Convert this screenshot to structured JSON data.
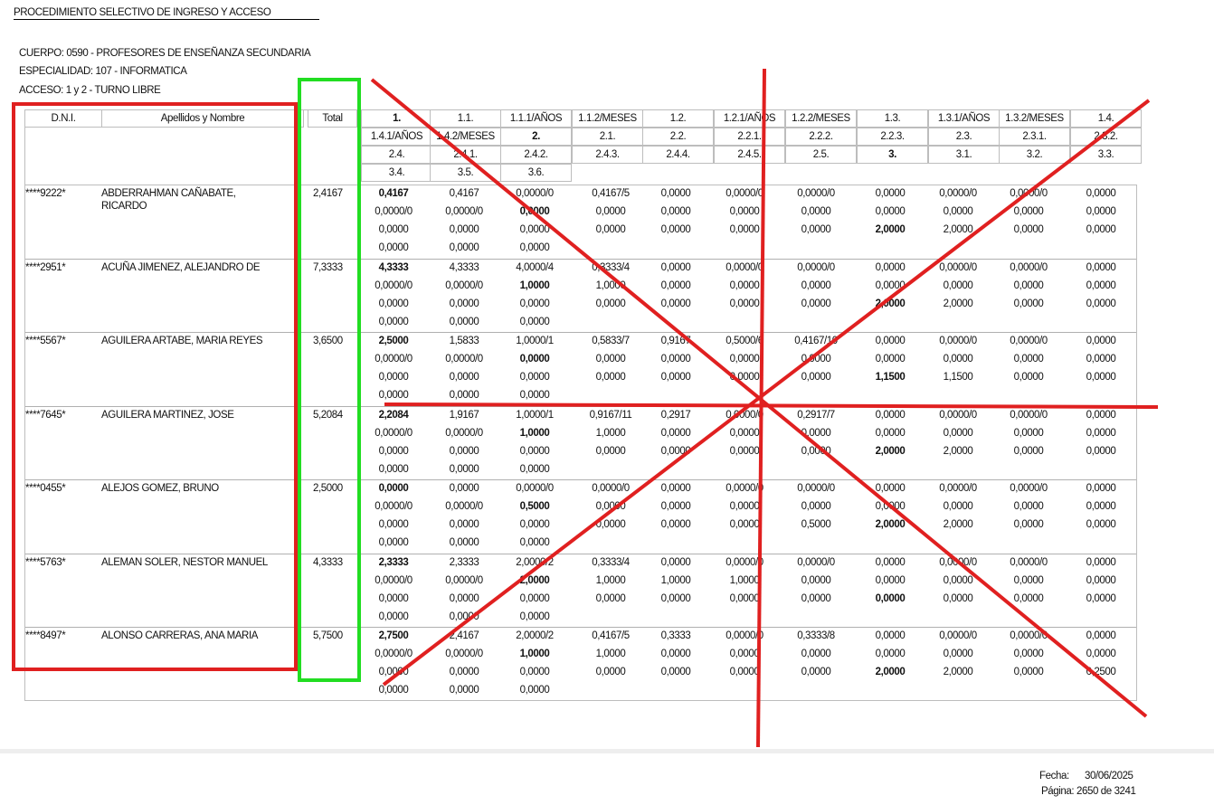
{
  "header": {
    "title": "PROCEDIMIENTO SELECTIVO DE INGRESO Y ACCESO",
    "cuerpo": "CUERPO: 0590 - PROFESORES DE ENSEÑANZA SECUNDARIA",
    "especialidad": "ESPECIALIDAD: 107 - INFORMATICA",
    "acceso": "ACCESO: 1 y 2 - TURNO LIBRE"
  },
  "table_header": {
    "dni": "D.N.I.",
    "nombre": "Apellidos y Nombre",
    "total": "Total",
    "score_rows": [
      [
        "1.",
        "1.1.",
        "1.1.1/AÑOS",
        "1.1.2/MESES",
        "1.2.",
        "1.2.1/AÑOS",
        "1.2.2/MESES",
        "1.3.",
        "1.3.1/AÑOS",
        "1.3.2/MESES",
        "1.4."
      ],
      [
        "1.4.1/AÑOS",
        "1.4.2/MESES",
        "2.",
        "2.1.",
        "2.2.",
        "2.2.1.",
        "2.2.2.",
        "2.2.3.",
        "2.3.",
        "2.3.1.",
        "2.3.2."
      ],
      [
        "2.4.",
        "2.4.1.",
        "2.4.2.",
        "2.4.3.",
        "2.4.4.",
        "2.4.5.",
        "2.5.",
        "3.",
        "3.1.",
        "3.2.",
        "3.3."
      ],
      [
        "3.4.",
        "3.5.",
        "3.6."
      ]
    ]
  },
  "candidates": [
    {
      "dni": "****9222*",
      "name_line1": "ABDERRAHMAN CAÑABATE,",
      "name_line2": "RICARDO",
      "total": "2,4167",
      "rows": [
        [
          "0,4167",
          "0,4167",
          "0,0000/0",
          "0,4167/5",
          "0,0000",
          "0,0000/0",
          "0,0000/0",
          "0,0000",
          "0,0000/0",
          "0,0000/0",
          "0,0000"
        ],
        [
          "0,0000/0",
          "0,0000/0",
          "0,0000",
          "0,0000",
          "0,0000",
          "0,0000",
          "0,0000",
          "0,0000",
          "0,0000",
          "0,0000",
          "0,0000"
        ],
        [
          "0,0000",
          "0,0000",
          "0,0000",
          "0,0000",
          "0,0000",
          "0,0000",
          "0,0000",
          "2,0000",
          "2,0000",
          "0,0000",
          "0,0000"
        ],
        [
          "0,0000",
          "0,0000",
          "0,0000"
        ]
      ]
    },
    {
      "dni": "****2951*",
      "name_line1": "ACUÑA JIMENEZ, ALEJANDRO DE",
      "name_line2": "",
      "total": "7,3333",
      "rows": [
        [
          "4,3333",
          "4,3333",
          "4,0000/4",
          "0,3333/4",
          "0,0000",
          "0,0000/0",
          "0,0000/0",
          "0,0000",
          "0,0000/0",
          "0,0000/0",
          "0,0000"
        ],
        [
          "0,0000/0",
          "0,0000/0",
          "1,0000",
          "1,0000",
          "0,0000",
          "0,0000",
          "0,0000",
          "0,0000",
          "0,0000",
          "0,0000",
          "0,0000"
        ],
        [
          "0,0000",
          "0,0000",
          "0,0000",
          "0,0000",
          "0,0000",
          "0,0000",
          "0,0000",
          "2,0000",
          "2,0000",
          "0,0000",
          "0,0000"
        ],
        [
          "0,0000",
          "0,0000",
          "0,0000"
        ]
      ]
    },
    {
      "dni": "****5567*",
      "name_line1": "AGUILERA ARTABE, MARIA REYES",
      "name_line2": "",
      "total": "3,6500",
      "rows": [
        [
          "2,5000",
          "1,5833",
          "1,0000/1",
          "0,5833/7",
          "0,9167",
          "0,5000/6",
          "0,4167/10",
          "0,0000",
          "0,0000/0",
          "0,0000/0",
          "0,0000"
        ],
        [
          "0,0000/0",
          "0,0000/0",
          "0,0000",
          "0,0000",
          "0,0000",
          "0,0000",
          "0,0000",
          "0,0000",
          "0,0000",
          "0,0000",
          "0,0000"
        ],
        [
          "0,0000",
          "0,0000",
          "0,0000",
          "0,0000",
          "0,0000",
          "0,0000",
          "0,0000",
          "1,1500",
          "1,1500",
          "0,0000",
          "0,0000"
        ],
        [
          "0,0000",
          "0,0000",
          "0,0000"
        ]
      ]
    },
    {
      "dni": "****7645*",
      "name_line1": "AGUILERA MARTINEZ, JOSE",
      "name_line2": "",
      "total": "5,2084",
      "rows": [
        [
          "2,2084",
          "1,9167",
          "1,0000/1",
          "0,9167/11",
          "0,2917",
          "0,0000/0",
          "0,2917/7",
          "0,0000",
          "0,0000/0",
          "0,0000/0",
          "0,0000"
        ],
        [
          "0,0000/0",
          "0,0000/0",
          "1,0000",
          "1,0000",
          "0,0000",
          "0,0000",
          "0,0000",
          "0,0000",
          "0,0000",
          "0,0000",
          "0,0000"
        ],
        [
          "0,0000",
          "0,0000",
          "0,0000",
          "0,0000",
          "0,0000",
          "0,0000",
          "0,0000",
          "2,0000",
          "2,0000",
          "0,0000",
          "0,0000"
        ],
        [
          "0,0000",
          "0,0000",
          "0,0000"
        ]
      ]
    },
    {
      "dni": "****0455*",
      "name_line1": "ALEJOS GOMEZ, BRUNO",
      "name_line2": "",
      "total": "2,5000",
      "rows": [
        [
          "0,0000",
          "0,0000",
          "0,0000/0",
          "0,0000/0",
          "0,0000",
          "0,0000/0",
          "0,0000/0",
          "0,0000",
          "0,0000/0",
          "0,0000/0",
          "0,0000"
        ],
        [
          "0,0000/0",
          "0,0000/0",
          "0,5000",
          "0,0000",
          "0,0000",
          "0,0000",
          "0,0000",
          "0,0000",
          "0,0000",
          "0,0000",
          "0,0000"
        ],
        [
          "0,0000",
          "0,0000",
          "0,0000",
          "0,0000",
          "0,0000",
          "0,0000",
          "0,5000",
          "2,0000",
          "2,0000",
          "0,0000",
          "0,0000"
        ],
        [
          "0,0000",
          "0,0000",
          "0,0000"
        ]
      ]
    },
    {
      "dni": "****5763*",
      "name_line1": "ALEMAN SOLER, NESTOR MANUEL",
      "name_line2": "",
      "total": "4,3333",
      "rows": [
        [
          "2,3333",
          "2,3333",
          "2,0000/2",
          "0,3333/4",
          "0,0000",
          "0,0000/0",
          "0,0000/0",
          "0,0000",
          "0,0000/0",
          "0,0000/0",
          "0,0000"
        ],
        [
          "0,0000/0",
          "0,0000/0",
          "2,0000",
          "1,0000",
          "1,0000",
          "1,0000",
          "0,0000",
          "0,0000",
          "0,0000",
          "0,0000",
          "0,0000"
        ],
        [
          "0,0000",
          "0,0000",
          "0,0000",
          "0,0000",
          "0,0000",
          "0,0000",
          "0,0000",
          "0,0000",
          "0,0000",
          "0,0000",
          "0,0000"
        ],
        [
          "0,0000",
          "0,0000",
          "0,0000"
        ]
      ]
    },
    {
      "dni": "****8497*",
      "name_line1": "ALONSO CARRERAS, ANA MARIA",
      "name_line2": "",
      "total": "5,7500",
      "rows": [
        [
          "2,7500",
          "2,4167",
          "2,0000/2",
          "0,4167/5",
          "0,3333",
          "0,0000/0",
          "0,3333/8",
          "0,0000",
          "0,0000/0",
          "0,0000/0",
          "0,0000"
        ],
        [
          "0,0000/0",
          "0,0000/0",
          "1,0000",
          "1,0000",
          "0,0000",
          "0,0000",
          "0,0000",
          "0,0000",
          "0,0000",
          "0,0000",
          "0,0000"
        ],
        [
          "0,0000",
          "0,0000",
          "0,0000",
          "0,0000",
          "0,0000",
          "0,0000",
          "0,0000",
          "2,0000",
          "2,0000",
          "0,0000",
          "0,2500"
        ],
        [
          "0,0000",
          "0,0000",
          "0,0000"
        ]
      ]
    }
  ],
  "footer": {
    "fecha_label": "Fecha:",
    "fecha_value": "30/06/2025",
    "pagina": "Página: 2650 de 3241"
  },
  "annotation_colors": {
    "red": "#e02020",
    "green": "#22dd22"
  }
}
